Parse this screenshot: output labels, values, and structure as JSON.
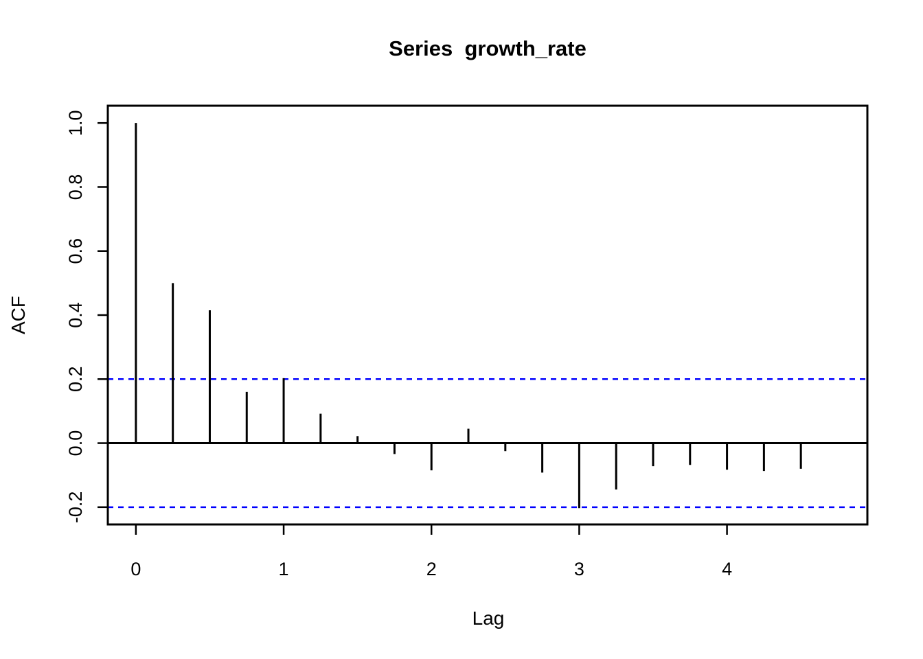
{
  "chart_data": {
    "type": "bar",
    "subtype": "acf-stem-plot",
    "title": "Series  growth_rate",
    "xlabel": "Lag",
    "ylabel": "ACF",
    "x": [
      0,
      0.25,
      0.5,
      0.75,
      1,
      1.25,
      1.5,
      1.75,
      2,
      2.25,
      2.5,
      2.75,
      3,
      3.25,
      3.5,
      3.75,
      4,
      4.25,
      4.5
    ],
    "values": [
      1.0,
      0.5,
      0.415,
      0.16,
      0.203,
      0.092,
      0.022,
      -0.034,
      -0.085,
      0.045,
      -0.025,
      -0.092,
      -0.203,
      -0.145,
      -0.072,
      -0.068,
      -0.083,
      -0.087,
      -0.08
    ],
    "confidence_bounds": [
      -0.2,
      0.2
    ],
    "xticks": [
      0,
      1,
      2,
      3,
      4
    ],
    "xtick_labels": [
      "0",
      "1",
      "2",
      "3",
      "4"
    ],
    "yticks": [
      -0.2,
      0.0,
      0.2,
      0.4,
      0.6,
      0.8,
      1.0
    ],
    "ytick_labels": [
      "-0.2",
      "0.0",
      "0.2",
      "0.4",
      "0.6",
      "0.8",
      "1.0"
    ],
    "xlim": [
      -0.19,
      4.95
    ],
    "ylim": [
      -0.254,
      1.054
    ],
    "grid": false,
    "legend": null,
    "colors": {
      "spike": "#000000",
      "confidence_line": "#0000FF",
      "axis": "#000000",
      "text": "#000000",
      "background": "#FFFFFF"
    }
  }
}
